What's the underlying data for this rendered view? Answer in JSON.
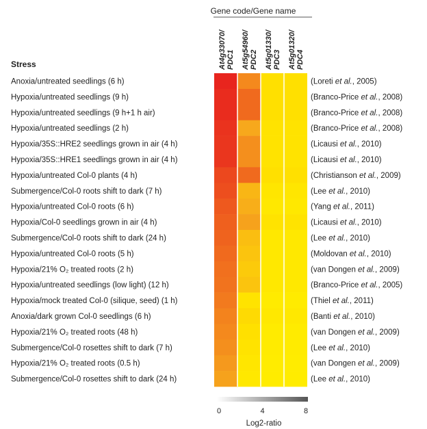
{
  "chart_data": {
    "type": "heatmap",
    "group_header": "Gene code/Gene name",
    "row_header": "Stress",
    "columns": [
      {
        "code": "At4g33070/",
        "name": "PDC1"
      },
      {
        "code": "At5g54960/",
        "name": "PDC2"
      },
      {
        "code": "At5g01330/",
        "name": "PDC3"
      },
      {
        "code": "At5g01320/",
        "name": "PDC4"
      }
    ],
    "rows": [
      {
        "stress": "Anoxia/untreated seedlings (6 h)",
        "ref_pre": "(Loreti ",
        "ref_etal": "et al.",
        "ref_post": ", 2005)",
        "values": [
          8.0,
          5.0,
          2.0,
          2.0
        ]
      },
      {
        "stress": "Hypoxia/untreated seedlings (9 h)",
        "ref_pre": "(Branco-Price ",
        "ref_etal": "et al.",
        "ref_post": ", 2008)",
        "values": [
          7.8,
          6.0,
          2.0,
          2.0
        ]
      },
      {
        "stress": "Hypoxia/untreated seedlings (9 h+1 h air)",
        "ref_pre": "(Branco-Price ",
        "ref_etal": "et al.",
        "ref_post": ", 2008)",
        "values": [
          7.8,
          6.0,
          2.0,
          2.0
        ]
      },
      {
        "stress": "Hypoxia/untreated seedlings (2 h)",
        "ref_pre": "(Branco-Price ",
        "ref_etal": "et al.",
        "ref_post": ", 2008)",
        "values": [
          7.6,
          4.0,
          1.8,
          1.8
        ]
      },
      {
        "stress": "Hypoxia/35S::HRE2 seedlings grown in air (4 h)",
        "ref_pre": "(Licausi ",
        "ref_etal": "et al.",
        "ref_post": ", 2010)",
        "values": [
          7.5,
          4.8,
          1.8,
          1.8
        ]
      },
      {
        "stress": "Hypoxia/35S::HRE1 seedlings grown in air (4 h)",
        "ref_pre": "(Licausi ",
        "ref_etal": "et al.",
        "ref_post": ", 2010)",
        "values": [
          7.5,
          4.8,
          1.8,
          1.8
        ]
      },
      {
        "stress": "Hypoxia/untreated Col-0 plants (4 h)",
        "ref_pre": "(Christianson ",
        "ref_etal": "et al.",
        "ref_post": ", 2009)",
        "values": [
          7.0,
          6.0,
          2.0,
          2.0
        ]
      },
      {
        "stress": "Submergence/Col-0 roots shift to dark (7 h)",
        "ref_pre": "(Lee ",
        "ref_etal": "et al.",
        "ref_post": ", 2010)",
        "values": [
          6.8,
          3.5,
          1.6,
          1.6
        ]
      },
      {
        "stress": "Hypoxia/untreated Col-0 roots (6 h)",
        "ref_pre": "(Yang ",
        "ref_etal": "et al.",
        "ref_post": ", 2011)",
        "values": [
          6.5,
          3.8,
          1.5,
          1.5
        ]
      },
      {
        "stress": "Hypoxia/Col-0 seedlings grown in air (4 h)",
        "ref_pre": "(Licausi ",
        "ref_etal": "et al.",
        "ref_post": ", 2010)",
        "values": [
          6.3,
          4.2,
          1.8,
          1.8
        ]
      },
      {
        "stress": "Submergence/Col-0 roots shift to dark (24 h)",
        "ref_pre": "(Lee ",
        "ref_etal": "et al.",
        "ref_post": ", 2010)",
        "values": [
          6.2,
          3.2,
          1.5,
          1.5
        ]
      },
      {
        "stress": "Hypoxia/untreated Col-0 roots (5 h)",
        "ref_pre": "(Moldovan ",
        "ref_etal": "et al.",
        "ref_post": ", 2010)",
        "values": [
          6.0,
          3.0,
          1.5,
          1.5
        ]
      },
      {
        "stress": "Hypoxia/21% O₂ treated roots (2 h)",
        "ref_pre": "(van Dongen ",
        "ref_etal": "et al.",
        "ref_post": ", 2009)",
        "values": [
          5.8,
          2.8,
          1.5,
          1.5
        ]
      },
      {
        "stress": "Hypoxia/untreated seedlings (low light) (12 h)",
        "ref_pre": "(Branco-Price ",
        "ref_etal": "et al.",
        "ref_post": ", 2005)",
        "values": [
          5.7,
          3.0,
          1.5,
          1.5
        ]
      },
      {
        "stress": "Hypoxia/mock treated Col-0 (silique, seed) (1 h)",
        "ref_pre": "(Thiel ",
        "ref_etal": "et al.",
        "ref_post": ", 2011)",
        "values": [
          5.5,
          1.8,
          1.3,
          1.3
        ]
      },
      {
        "stress": "Anoxia/dark grown Col-0 seedlings (6 h)",
        "ref_pre": "(Banti ",
        "ref_etal": "et al.",
        "ref_post": ", 2010)",
        "values": [
          5.2,
          2.2,
          1.5,
          1.5
        ]
      },
      {
        "stress": "Hypoxia/21% O₂ treated roots (48 h)",
        "ref_pre": "(van Dongen ",
        "ref_etal": "et al.",
        "ref_post": ", 2009)",
        "values": [
          5.0,
          2.0,
          1.3,
          1.3
        ]
      },
      {
        "stress": "Submergence/Col-0 rosettes shift to dark (7 h)",
        "ref_pre": "(Lee ",
        "ref_etal": "et al.",
        "ref_post": ", 2010)",
        "values": [
          4.8,
          1.8,
          1.3,
          1.3
        ]
      },
      {
        "stress": "Hypoxia/21% O₂ treated roots (0.5 h)",
        "ref_pre": "(van Dongen ",
        "ref_etal": "et al.",
        "ref_post": ", 2009)",
        "values": [
          4.5,
          1.6,
          1.2,
          1.2
        ]
      },
      {
        "stress": "Submergence/Col-0 rosettes shift to dark (24 h)",
        "ref_pre": "(Lee ",
        "ref_etal": "et al.",
        "ref_post": ", 2010)",
        "values": [
          4.2,
          1.5,
          1.2,
          1.2
        ]
      }
    ],
    "color_scale": {
      "min": 0,
      "max": 8,
      "ticks": [
        0,
        4,
        8
      ],
      "label": "Log2-ratio",
      "heat_colors": [
        "#ffff00",
        "#ffe000",
        "#f7a81c",
        "#f06a1e",
        "#e8251e"
      ],
      "legend_colors": [
        "#ffffff",
        "#555555"
      ]
    }
  }
}
